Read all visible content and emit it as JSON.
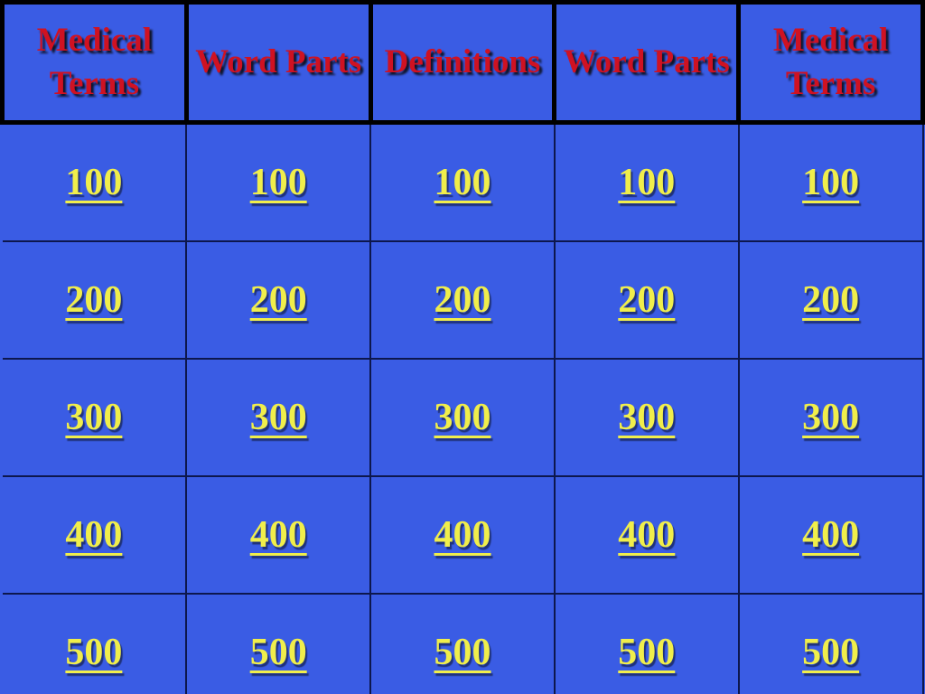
{
  "board": {
    "headers": [
      "Medical Terms",
      "Word Parts",
      "Definitions",
      "Word Parts",
      "Medical Terms"
    ],
    "rows": [
      [
        "100",
        "100",
        "100",
        "100",
        "100"
      ],
      [
        "200",
        "200",
        "200",
        "200",
        "200"
      ],
      [
        "300",
        "300",
        "300",
        "300",
        "300"
      ],
      [
        "400",
        "400",
        "400",
        "400",
        "400"
      ],
      [
        "500",
        "500",
        "500",
        "500",
        "500"
      ]
    ]
  },
  "colors": {
    "background": "#3a5ce4",
    "header_text": "#cf1222",
    "value_text": "#f0ee4b",
    "header_border": "#000000",
    "grid_line": "#0d174d"
  }
}
